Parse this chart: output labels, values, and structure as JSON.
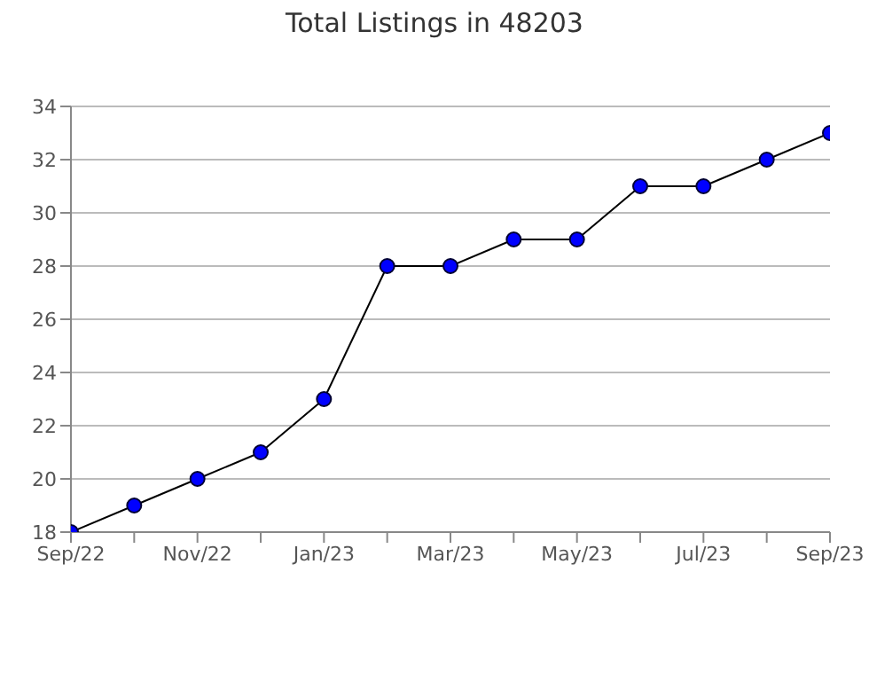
{
  "chart_data": {
    "type": "line",
    "title": "Total Listings in 48203",
    "categories": [
      "Sep/22",
      null,
      "Nov/22",
      null,
      "Jan/23",
      null,
      "Mar/23",
      null,
      "May/23",
      null,
      "Jul/23",
      null,
      "Sep/23"
    ],
    "series": [
      {
        "color": "#0000ff",
        "values": [
          18,
          19,
          20,
          21,
          23,
          28,
          28,
          29,
          29,
          31,
          31,
          32,
          33
        ]
      }
    ],
    "ylim": [
      18,
      34
    ],
    "yticks": [
      18,
      20,
      22,
      24,
      26,
      28,
      30,
      32,
      34
    ],
    "grid": "y",
    "marker": "circle"
  }
}
